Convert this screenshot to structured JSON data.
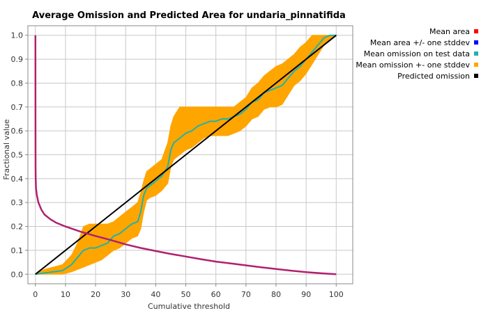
{
  "chart_data": {
    "type": "line",
    "title": "Average Omission and Predicted Area for undaria_pinnatifida",
    "xlabel": "Cumulative threshold",
    "ylabel": "Fractional value",
    "xlim": [
      -2.5,
      105.5
    ],
    "ylim": [
      -0.04,
      1.04
    ],
    "x_ticks": [
      "0",
      "10",
      "20",
      "30",
      "40",
      "50",
      "60",
      "70",
      "80",
      "90",
      "100"
    ],
    "y_ticks": [
      "0.0",
      "0.1",
      "0.2",
      "0.3",
      "0.4",
      "0.5",
      "0.6",
      "0.7",
      "0.8",
      "0.9",
      "1.0"
    ],
    "grid": true,
    "legend_position": "right",
    "legend": [
      {
        "label": "Mean area",
        "color": "#ff0000"
      },
      {
        "label": "Mean area +/- one stddev",
        "color": "#0000ff"
      },
      {
        "label": "Mean omission on test data",
        "color": "#20b2aa"
      },
      {
        "label": "Mean omission +- one stddev",
        "color": "#ffa500"
      },
      {
        "label": "Predicted omission",
        "color": "#000000"
      }
    ],
    "series": [
      {
        "name": "Mean area",
        "color": "#b0206e",
        "x": [
          0,
          0.02,
          0.05,
          0.1,
          0.2,
          0.5,
          1,
          2,
          3,
          5,
          7,
          10,
          15,
          20,
          25,
          30,
          35,
          40,
          45,
          50,
          55,
          60,
          65,
          70,
          75,
          80,
          85,
          90,
          95,
          100
        ],
        "y": [
          1.0,
          0.62,
          0.45,
          0.4,
          0.36,
          0.33,
          0.3,
          0.27,
          0.25,
          0.23,
          0.215,
          0.2,
          0.178,
          0.16,
          0.143,
          0.125,
          0.11,
          0.097,
          0.085,
          0.074,
          0.063,
          0.053,
          0.045,
          0.037,
          0.029,
          0.022,
          0.015,
          0.009,
          0.004,
          0.0
        ]
      },
      {
        "name": "Mean omission on test data",
        "color": "#20b2aa",
        "x": [
          0,
          3,
          6,
          9,
          12,
          14,
          16,
          18,
          20,
          22,
          24,
          26,
          28,
          30,
          32,
          34,
          35,
          36,
          37,
          38,
          40,
          42,
          44,
          45,
          46,
          47,
          48,
          50,
          52,
          54,
          56,
          58,
          60,
          62,
          64,
          66,
          68,
          70,
          72,
          74,
          76,
          78,
          80,
          82,
          84,
          86,
          88,
          90,
          92,
          94,
          96,
          98,
          100
        ],
        "y": [
          0.0,
          0.005,
          0.01,
          0.015,
          0.04,
          0.07,
          0.1,
          0.11,
          0.11,
          0.12,
          0.13,
          0.16,
          0.17,
          0.19,
          0.21,
          0.22,
          0.26,
          0.33,
          0.36,
          0.37,
          0.39,
          0.41,
          0.45,
          0.52,
          0.55,
          0.56,
          0.57,
          0.59,
          0.6,
          0.62,
          0.63,
          0.64,
          0.64,
          0.65,
          0.65,
          0.66,
          0.67,
          0.69,
          0.72,
          0.73,
          0.76,
          0.77,
          0.78,
          0.79,
          0.82,
          0.85,
          0.87,
          0.9,
          0.93,
          0.96,
          0.99,
          1.0,
          1.0
        ]
      },
      {
        "name": "Mean omission +- one stddev",
        "color": "#ffa500",
        "x": [
          0,
          3,
          6,
          9,
          12,
          14,
          16,
          18,
          20,
          22,
          24,
          26,
          28,
          30,
          32,
          34,
          35,
          36,
          37,
          38,
          40,
          42,
          44,
          45,
          46,
          47,
          48,
          50,
          52,
          54,
          56,
          58,
          60,
          62,
          64,
          66,
          68,
          70,
          72,
          74,
          76,
          78,
          80,
          82,
          84,
          86,
          88,
          90,
          92,
          94,
          96,
          98,
          100
        ],
        "upper": [
          0.0,
          0.02,
          0.03,
          0.04,
          0.08,
          0.13,
          0.2,
          0.21,
          0.21,
          0.21,
          0.21,
          0.22,
          0.24,
          0.26,
          0.28,
          0.3,
          0.34,
          0.39,
          0.43,
          0.44,
          0.46,
          0.48,
          0.55,
          0.62,
          0.66,
          0.68,
          0.7,
          0.7,
          0.7,
          0.7,
          0.7,
          0.7,
          0.7,
          0.7,
          0.7,
          0.7,
          0.72,
          0.74,
          0.78,
          0.8,
          0.83,
          0.85,
          0.87,
          0.88,
          0.9,
          0.92,
          0.95,
          0.97,
          1.0,
          1.0,
          1.0,
          1.0,
          1.0
        ],
        "lower": [
          0.0,
          0.0,
          0.0,
          0.0,
          0.01,
          0.02,
          0.03,
          0.04,
          0.05,
          0.06,
          0.08,
          0.1,
          0.11,
          0.13,
          0.15,
          0.16,
          0.19,
          0.26,
          0.31,
          0.32,
          0.33,
          0.35,
          0.38,
          0.45,
          0.48,
          0.49,
          0.5,
          0.52,
          0.53,
          0.55,
          0.57,
          0.58,
          0.58,
          0.58,
          0.58,
          0.59,
          0.6,
          0.62,
          0.65,
          0.66,
          0.69,
          0.7,
          0.7,
          0.71,
          0.75,
          0.79,
          0.81,
          0.84,
          0.88,
          0.92,
          0.96,
          0.98,
          1.0
        ]
      },
      {
        "name": "Predicted omission",
        "color": "#000000",
        "x": [
          0,
          100
        ],
        "y": [
          0.0,
          1.0
        ]
      }
    ]
  }
}
